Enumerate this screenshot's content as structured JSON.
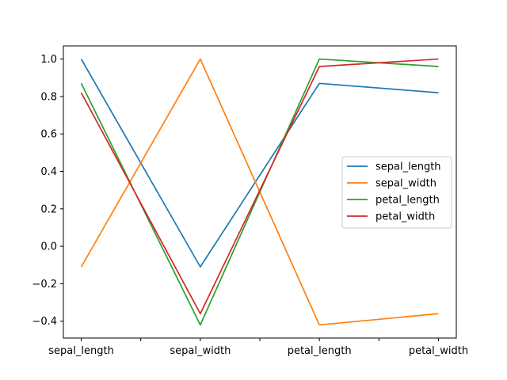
{
  "chart_data": {
    "type": "line",
    "categories": [
      "sepal_length",
      "sepal_width",
      "petal_length",
      "petal_width"
    ],
    "x_ticks_unlabeled": [
      0.5,
      1.5,
      2.5
    ],
    "series": [
      {
        "name": "sepal_length",
        "color": "#1f77b4",
        "values": [
          1.0,
          -0.11,
          0.87,
          0.82
        ]
      },
      {
        "name": "sepal_width",
        "color": "#ff7f0e",
        "values": [
          -0.11,
          1.0,
          -0.42,
          -0.36
        ]
      },
      {
        "name": "petal_length",
        "color": "#2ca02c",
        "values": [
          0.87,
          -0.42,
          1.0,
          0.96
        ]
      },
      {
        "name": "petal_width",
        "color": "#d62728",
        "values": [
          0.82,
          -0.36,
          0.96,
          1.0
        ]
      }
    ],
    "y_ticks": [
      "1.0",
      "0.8",
      "0.6",
      "0.4",
      "0.2",
      "0.0",
      "−0.2",
      "−0.4"
    ],
    "y_tick_values": [
      1.0,
      0.8,
      0.6,
      0.4,
      0.2,
      0.0,
      -0.2,
      -0.4
    ],
    "xlim": [
      -0.15,
      3.15
    ],
    "ylim": [
      -0.49,
      1.07
    ],
    "title": "",
    "xlabel": "",
    "ylabel": "",
    "grid": false,
    "legend_position": "center-right"
  }
}
